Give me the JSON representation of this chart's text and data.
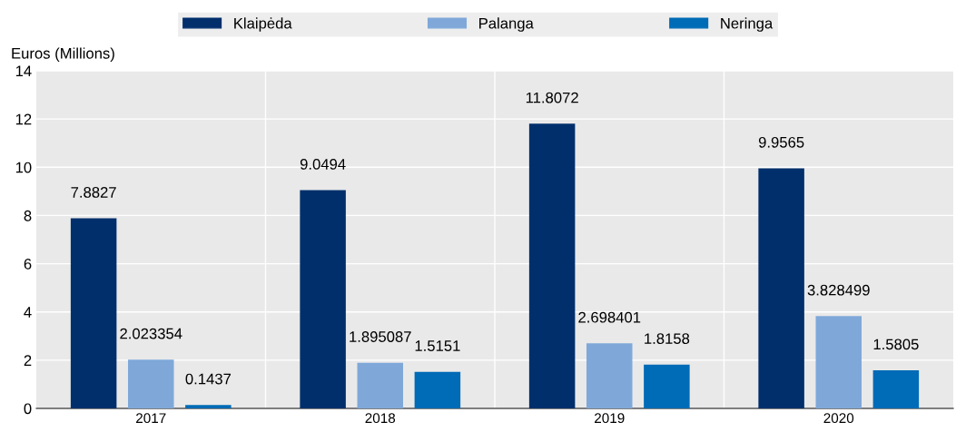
{
  "chart_data": {
    "type": "bar",
    "ylabel": "Euros (Millions)",
    "categories": [
      "2017",
      "2018",
      "2019",
      "2020"
    ],
    "series": [
      {
        "name": "Klaipėda",
        "color": "#002f6c",
        "values": [
          7.8827,
          9.0494,
          11.8072,
          9.9565
        ]
      },
      {
        "name": "Palanga",
        "color": "#7fa8d9",
        "values": [
          2.023354,
          1.895087,
          2.698401,
          3.828499
        ]
      },
      {
        "name": "Neringa",
        "color": "#006bb6",
        "values": [
          0.1437,
          1.5151,
          1.8158,
          1.5805
        ]
      }
    ],
    "ylim": [
      0,
      14
    ],
    "yticks": [
      0,
      2,
      4,
      6,
      8,
      10,
      12,
      14
    ],
    "grid": true,
    "legend": "top",
    "data_labels": true
  }
}
